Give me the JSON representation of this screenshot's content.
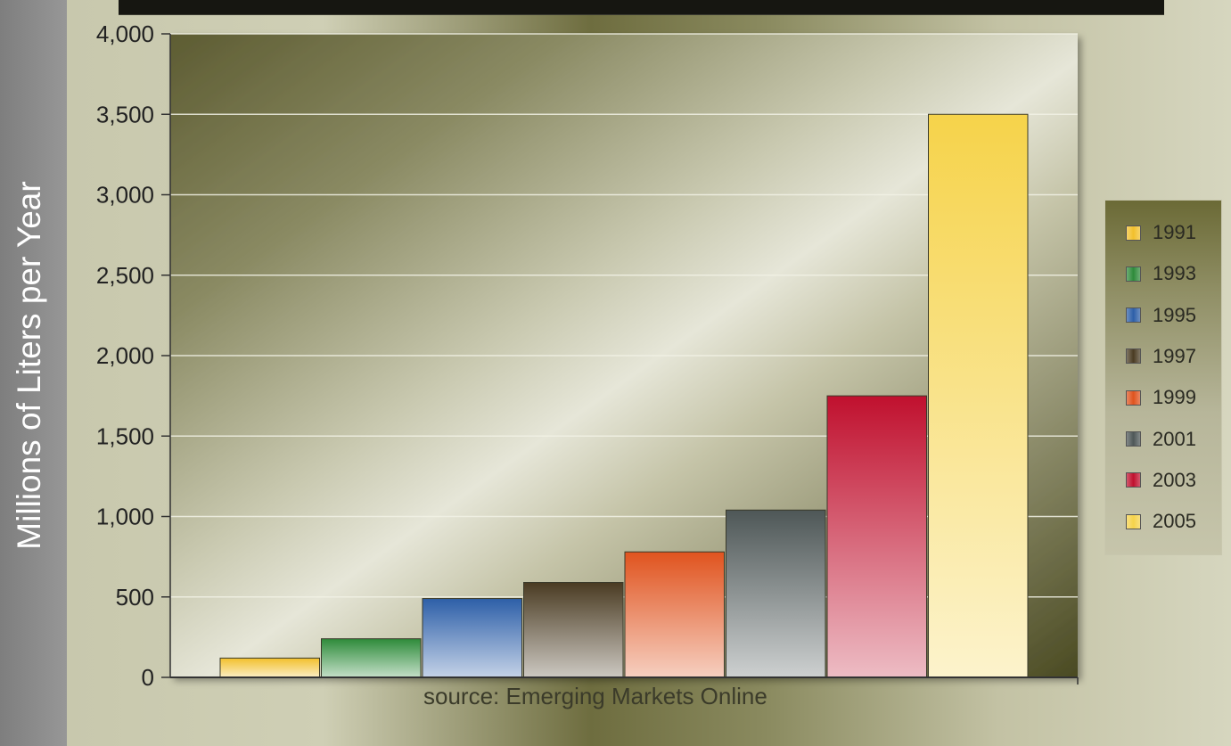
{
  "chart_data": {
    "type": "bar",
    "ylabel": "Millions of Liters per Year",
    "source_note": "source: Emerging Markets Online",
    "ylim": [
      0,
      4000
    ],
    "y_ticks": [
      "0",
      "500",
      "1,000",
      "1,500",
      "2,000",
      "2,500",
      "3,000",
      "3,500",
      "4,000"
    ],
    "grid": true,
    "legend_position": "right",
    "series": [
      {
        "name": "1991",
        "value": 120,
        "color": "#f2c02c"
      },
      {
        "name": "1993",
        "value": 240,
        "color": "#2e8b3a"
      },
      {
        "name": "1995",
        "value": 490,
        "color": "#2d5fa8"
      },
      {
        "name": "1997",
        "value": 590,
        "color": "#4a3b22"
      },
      {
        "name": "1999",
        "value": 780,
        "color": "#e0531e"
      },
      {
        "name": "2001",
        "value": 1040,
        "color": "#4e5757"
      },
      {
        "name": "2003",
        "value": 1750,
        "color": "#c0102e"
      },
      {
        "name": "2005",
        "value": 3500,
        "color": "#f6d34a"
      }
    ]
  }
}
